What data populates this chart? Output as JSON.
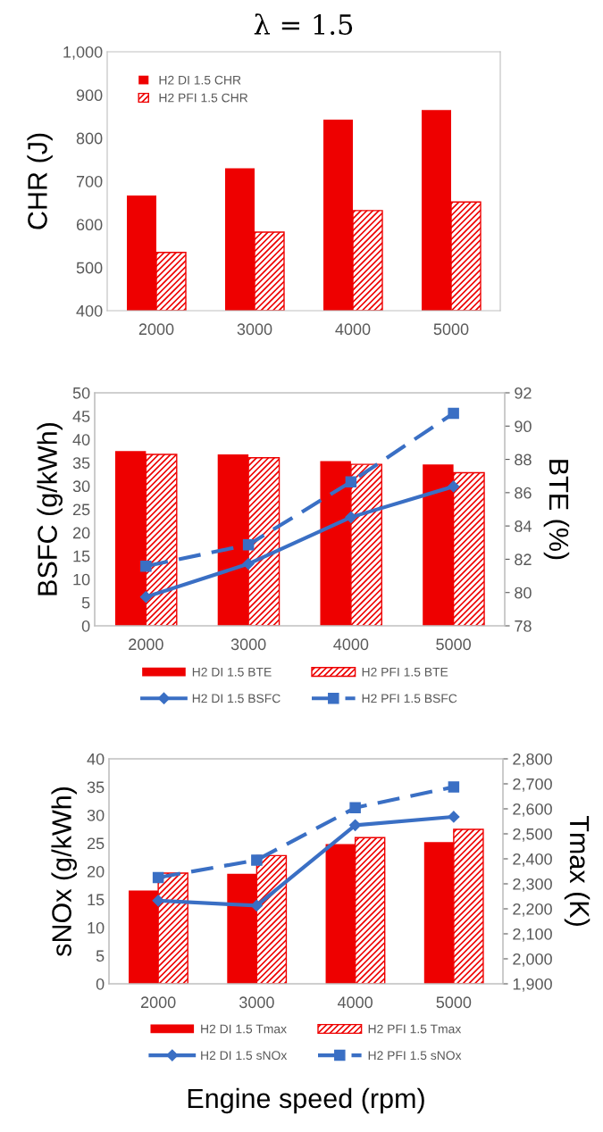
{
  "chart_data": [
    {
      "type": "bar",
      "title": "λ = 1.5",
      "ylabel": "CHR (J)",
      "categories": [
        "2000",
        "3000",
        "4000",
        "5000"
      ],
      "series": [
        {
          "name": "H2 DI 1.5 CHR",
          "color": "#ee0000",
          "values": [
            667,
            730,
            843,
            865
          ]
        },
        {
          "name": "H2 PFI 1.5 CHR",
          "color": "#ee0000",
          "values": [
            535,
            582,
            632,
            652
          ]
        }
      ],
      "ylim": [
        400,
        1000
      ],
      "yticks": [
        400,
        500,
        600,
        700,
        800,
        900,
        {
          "value": 1000,
          "label": "1,000"
        }
      ],
      "legend": "top left"
    },
    {
      "type": "bar",
      "ylabel": "BSFC (g/kWh)",
      "y2label": "BTE (%)",
      "categories": [
        "2000",
        "3000",
        "4000",
        "5000"
      ],
      "series": [
        {
          "name": "H2 DI 1.5 BTE",
          "color": "#ee0000",
          "axis": "y2",
          "values": [
            88.5,
            88.3,
            87.9,
            87.7
          ]
        },
        {
          "name": "H2 PFI 1.5 BTE",
          "color": "#ee0000",
          "axis": "y2",
          "values": [
            88.3,
            88.1,
            87.7,
            87.2
          ]
        },
        {
          "name": "H2 DI 1.5 BSFC",
          "type": "line",
          "color": "#3a6fc4",
          "marker": "diamond",
          "line_style": "solid",
          "values": [
            6.2,
            13.3,
            23.3,
            29.9
          ]
        },
        {
          "name": "H2 PFI 1.5 BSFC",
          "type": "line",
          "color": "#3a6fc4",
          "marker": "square",
          "line_style": "dashed",
          "values": [
            12.8,
            17.4,
            30.9,
            45.6
          ]
        }
      ],
      "ylim": [
        0,
        50
      ],
      "yticks": [
        0,
        5,
        10,
        15,
        20,
        25,
        30,
        35,
        40,
        45,
        50
      ],
      "y2lim": [
        78,
        92
      ],
      "y2ticks": [
        78,
        80,
        82,
        84,
        86,
        88,
        90,
        92
      ],
      "legend": "bottom"
    },
    {
      "type": "bar",
      "ylabel": "sNOx (g/kWh)",
      "y2label": "Tmax (K)",
      "xlabel": "Engine speed (rpm)",
      "categories": [
        "2000",
        "3000",
        "4000",
        "5000"
      ],
      "series": [
        {
          "name": "H2 DI 1.5 Tmax",
          "color": "#ee0000",
          "axis": "y2",
          "values": [
            2273,
            2340,
            2459,
            2467
          ]
        },
        {
          "name": "H2 PFI 1.5 Tmax",
          "color": "#ee0000",
          "axis": "y2",
          "values": [
            2343,
            2413,
            2485,
            2518
          ]
        },
        {
          "name": "H2 DI 1.5 sNOx",
          "type": "line",
          "color": "#3a6fc4",
          "marker": "diamond",
          "line_style": "solid",
          "values": [
            14.8,
            13.9,
            28.2,
            29.7
          ]
        },
        {
          "name": "H2 PFI 1.5 sNOx",
          "type": "line",
          "color": "#3a6fc4",
          "marker": "square",
          "line_style": "dashed",
          "values": [
            18.9,
            22.0,
            31.3,
            35.0
          ]
        }
      ],
      "ylim": [
        0,
        40
      ],
      "yticks": [
        0,
        5,
        10,
        15,
        20,
        25,
        30,
        35,
        40
      ],
      "y2lim": [
        1900,
        2800
      ],
      "y2ticks": [
        {
          "value": 1900,
          "label": "1,900"
        },
        {
          "value": 2000,
          "label": "2,000"
        },
        {
          "value": 2100,
          "label": "2,100"
        },
        {
          "value": 2200,
          "label": "2,200"
        },
        {
          "value": 2300,
          "label": "2,300"
        },
        {
          "value": 2400,
          "label": "2,400"
        },
        {
          "value": 2500,
          "label": "2,500"
        },
        {
          "value": 2600,
          "label": "2,600"
        },
        {
          "value": 2700,
          "label": "2,700"
        },
        {
          "value": 2800,
          "label": "2,800"
        }
      ],
      "legend": "bottom"
    }
  ]
}
